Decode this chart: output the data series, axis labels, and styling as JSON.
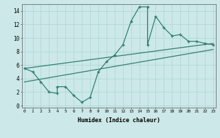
{
  "xlabel": "Humidex (Indice chaleur)",
  "bg_color": "#cce8e8",
  "line_color": "#2e7d70",
  "grid_color": "#b0d8d8",
  "curve_x": [
    0,
    1,
    2,
    3,
    4,
    4,
    5,
    6,
    7,
    8,
    9,
    10,
    11,
    12,
    13,
    14,
    15,
    15,
    16,
    17,
    18,
    19,
    20,
    21,
    22,
    23
  ],
  "curve_y": [
    5.5,
    5.0,
    3.5,
    2.0,
    1.8,
    2.8,
    2.8,
    1.5,
    0.5,
    1.2,
    5.0,
    6.5,
    7.5,
    9.0,
    12.5,
    14.6,
    14.6,
    9.0,
    13.2,
    11.5,
    10.3,
    10.5,
    9.5,
    9.5,
    9.2,
    9.0
  ],
  "trend_x": [
    0,
    23
  ],
  "trend_y": [
    5.5,
    9.2
  ],
  "trend2_x": [
    0,
    23
  ],
  "trend2_y": [
    3.5,
    8.3
  ],
  "xlim": [
    0,
    23
  ],
  "ylim": [
    0,
    15
  ],
  "yticks": [
    0,
    2,
    4,
    6,
    8,
    10,
    12,
    14
  ],
  "xticks": [
    0,
    1,
    2,
    3,
    4,
    5,
    6,
    7,
    8,
    9,
    10,
    11,
    12,
    13,
    14,
    15,
    16,
    17,
    18,
    19,
    20,
    21,
    22,
    23
  ]
}
